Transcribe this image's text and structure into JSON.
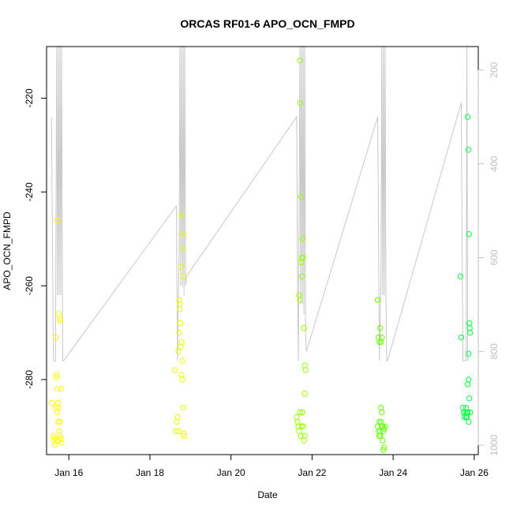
{
  "chart_data": {
    "type": "scatter",
    "title": "ORCAS RF01-6 APO_OCN_FMPD",
    "xlabel": "Date",
    "ylabel": "APO_OCN_FMPD",
    "x_ticks": [
      "Jan 16",
      "Jan 18",
      "Jan 20",
      "Jan 22",
      "Jan 24",
      "Jan 26"
    ],
    "y_ticks": [
      -280,
      -260,
      -240,
      -220
    ],
    "y2_ticks": [
      200,
      400,
      600,
      800,
      1000
    ],
    "xlim": [
      15.45,
      26.1
    ],
    "ylim": [
      -296,
      -209
    ],
    "y2lim": [
      1020,
      150
    ],
    "grid": false,
    "colors": {
      "altitude_line": "#c8c8c8",
      "y2_axis": "#bfbfbf",
      "flight_colors": [
        "#ffff00",
        "#e6ff00",
        "#ccff00",
        "#99ff00",
        "#66ff00",
        "#00ff44"
      ]
    },
    "altitude_series": [
      [
        15.57,
        300
      ],
      [
        15.62,
        820
      ],
      [
        15.67,
        820
      ],
      [
        15.7,
        150
      ],
      [
        15.72,
        680
      ],
      [
        15.74,
        150
      ],
      [
        15.76,
        680
      ],
      [
        15.78,
        150
      ],
      [
        15.8,
        680
      ],
      [
        15.82,
        150
      ],
      [
        15.85,
        820
      ],
      [
        15.87,
        820
      ],
      [
        18.65,
        490
      ],
      [
        18.68,
        820
      ],
      [
        18.72,
        580
      ],
      [
        18.74,
        150
      ],
      [
        18.76,
        660
      ],
      [
        18.78,
        150
      ],
      [
        18.8,
        660
      ],
      [
        18.82,
        150
      ],
      [
        18.84,
        680
      ],
      [
        18.86,
        150
      ],
      [
        18.88,
        660
      ],
      [
        18.9,
        640
      ],
      [
        21.62,
        300
      ],
      [
        21.64,
        650
      ],
      [
        21.66,
        820
      ],
      [
        21.7,
        150
      ],
      [
        21.72,
        700
      ],
      [
        21.74,
        150
      ],
      [
        21.76,
        700
      ],
      [
        21.78,
        150
      ],
      [
        21.8,
        720
      ],
      [
        21.82,
        150
      ],
      [
        21.84,
        760
      ],
      [
        21.86,
        800
      ],
      [
        23.62,
        300
      ],
      [
        23.66,
        820
      ],
      [
        23.7,
        640
      ],
      [
        23.72,
        150
      ],
      [
        23.74,
        680
      ],
      [
        23.76,
        150
      ],
      [
        23.78,
        680
      ],
      [
        23.8,
        150
      ],
      [
        23.82,
        660
      ],
      [
        23.84,
        820
      ],
      [
        23.86,
        820
      ],
      [
        25.68,
        270
      ],
      [
        25.72,
        820
      ],
      [
        25.8,
        820
      ],
      [
        25.82,
        150
      ],
      [
        25.84,
        820
      ]
    ],
    "series": [
      {
        "color": "#ffff00",
        "points": [
          [
            15.58,
            -285
          ],
          [
            15.62,
            -292
          ],
          [
            15.63,
            -293
          ],
          [
            15.65,
            -294
          ],
          [
            15.66,
            -292.5
          ],
          [
            15.68,
            -286
          ],
          [
            15.7,
            -293
          ],
          [
            15.71,
            -287
          ],
          [
            15.72,
            -282
          ],
          [
            15.73,
            -285
          ],
          [
            15.74,
            -289
          ],
          [
            15.75,
            -293
          ],
          [
            15.76,
            -291
          ],
          [
            15.77,
            -292
          ],
          [
            15.78,
            -289
          ],
          [
            15.8,
            -292.5
          ],
          [
            15.81,
            -282
          ],
          [
            15.82,
            -293.5
          ],
          [
            15.68,
            -271
          ],
          [
            15.7,
            -279
          ],
          [
            15.72,
            -246
          ],
          [
            15.75,
            -266
          ],
          [
            15.78,
            -267
          ],
          [
            15.79,
            -267.5
          ],
          [
            15.69,
            -279.5
          ],
          [
            15.74,
            -286
          ]
        ]
      },
      {
        "color": "#e6ff00",
        "points": [
          [
            18.62,
            -278
          ],
          [
            18.64,
            -291
          ],
          [
            18.66,
            -289
          ],
          [
            18.68,
            -288
          ],
          [
            18.7,
            -274
          ],
          [
            18.72,
            -263
          ],
          [
            18.72,
            -270
          ],
          [
            18.73,
            -264
          ],
          [
            18.74,
            -268
          ],
          [
            18.75,
            -268
          ],
          [
            18.76,
            -273
          ],
          [
            18.77,
            -256
          ],
          [
            18.78,
            -245
          ],
          [
            18.8,
            -249
          ],
          [
            18.81,
            -252
          ],
          [
            18.82,
            -258
          ],
          [
            18.78,
            -279
          ],
          [
            18.8,
            -280
          ],
          [
            18.82,
            -286
          ],
          [
            18.83,
            -291.5
          ],
          [
            18.84,
            -292
          ],
          [
            18.78,
            -272
          ],
          [
            18.8,
            -276
          ],
          [
            18.7,
            -291
          ],
          [
            18.73,
            -265
          ]
        ]
      },
      {
        "color": "#99ff00",
        "points": [
          [
            21.62,
            -288
          ],
          [
            21.64,
            -289
          ],
          [
            21.66,
            -290
          ],
          [
            21.68,
            -291
          ],
          [
            21.7,
            -287
          ],
          [
            21.72,
            -292
          ],
          [
            21.74,
            -290
          ],
          [
            21.76,
            -287
          ],
          [
            21.78,
            -290
          ],
          [
            21.8,
            -293
          ],
          [
            21.82,
            -292
          ],
          [
            21.7,
            -212
          ],
          [
            21.71,
            -221
          ],
          [
            21.72,
            -241
          ],
          [
            21.73,
            -255
          ],
          [
            21.74,
            -254
          ],
          [
            21.75,
            -258
          ],
          [
            21.76,
            -250
          ],
          [
            21.77,
            -254
          ],
          [
            21.68,
            -262
          ],
          [
            21.7,
            -263
          ],
          [
            21.8,
            -269
          ],
          [
            21.82,
            -277
          ],
          [
            21.84,
            -278
          ],
          [
            21.82,
            -283
          ],
          [
            21.76,
            -287
          ]
        ]
      },
      {
        "color": "#66ff00",
        "points": [
          [
            23.62,
            -263
          ],
          [
            23.64,
            -271
          ],
          [
            23.66,
            -272
          ],
          [
            23.68,
            -269
          ],
          [
            23.7,
            -272
          ],
          [
            23.72,
            -271
          ],
          [
            23.74,
            -290
          ],
          [
            23.62,
            -290
          ],
          [
            23.64,
            -291
          ],
          [
            23.66,
            -289
          ],
          [
            23.68,
            -292
          ],
          [
            23.7,
            -286
          ],
          [
            23.72,
            -290
          ],
          [
            23.74,
            -293
          ],
          [
            23.76,
            -295
          ],
          [
            23.78,
            -294.5
          ],
          [
            23.8,
            -290
          ],
          [
            23.7,
            -289
          ],
          [
            23.72,
            -287
          ],
          [
            23.68,
            -291
          ],
          [
            23.66,
            -292
          ],
          [
            23.76,
            -291
          ],
          [
            23.78,
            -290.5
          ]
        ]
      },
      {
        "color": "#00ff44",
        "points": [
          [
            25.66,
            -258
          ],
          [
            25.68,
            -271
          ],
          [
            25.72,
            -286
          ],
          [
            25.74,
            -287
          ],
          [
            25.76,
            -288
          ],
          [
            25.78,
            -287
          ],
          [
            25.8,
            -288
          ],
          [
            25.82,
            -288
          ],
          [
            25.84,
            -287
          ],
          [
            25.86,
            -289
          ],
          [
            25.84,
            -224
          ],
          [
            25.86,
            -231
          ],
          [
            25.87,
            -249
          ],
          [
            25.88,
            -268
          ],
          [
            25.89,
            -269
          ],
          [
            25.9,
            -270
          ],
          [
            25.86,
            -274.5
          ],
          [
            25.84,
            -281
          ],
          [
            25.86,
            -280
          ],
          [
            25.88,
            -284
          ],
          [
            25.9,
            -287
          ],
          [
            25.82,
            -287
          ],
          [
            25.8,
            -286
          ]
        ]
      }
    ]
  }
}
